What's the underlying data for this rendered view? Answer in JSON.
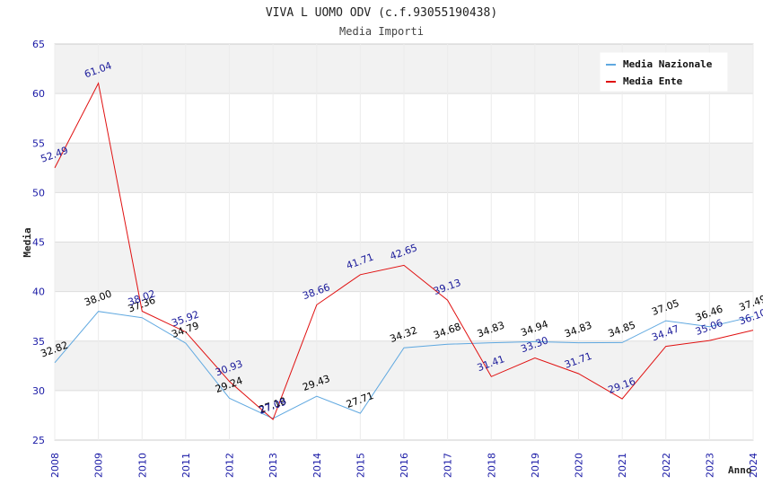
{
  "chart_data": {
    "type": "line",
    "title": "VIVA L UOMO ODV (c.f.93055190438)",
    "subtitle": "Media Importi",
    "xlabel": "Anno",
    "ylabel": "Media",
    "ylim": [
      25,
      65
    ],
    "yticks": [
      "25",
      "30",
      "35",
      "40",
      "45",
      "50",
      "55",
      "60",
      "65"
    ],
    "x": [
      "2008",
      "2009",
      "2010",
      "2011",
      "2012",
      "2013",
      "2014",
      "2015",
      "2016",
      "2017",
      "2018",
      "2019",
      "2020",
      "2021",
      "2022",
      "2023",
      "2024"
    ],
    "grid": true,
    "legend_position": "top-right",
    "series": [
      {
        "name": "Media Nazionale",
        "color": "#5fa8e0",
        "label_color": "#000000",
        "values": [
          32.82,
          38.0,
          37.36,
          34.79,
          29.24,
          27.18,
          29.43,
          27.71,
          34.32,
          34.68,
          34.83,
          34.94,
          34.83,
          34.85,
          37.05,
          36.46,
          37.49
        ],
        "labels": [
          "32.82",
          "38.00",
          "37.36",
          "34.79",
          "29.24",
          "27.18",
          "29.43",
          "27.71",
          "34.32",
          "34.68",
          "34.83",
          "34.94",
          "34.83",
          "34.85",
          "37.05",
          "36.46",
          "37.49"
        ]
      },
      {
        "name": "Media Ente",
        "color": "#e01010",
        "label_color": "#1a1a9a",
        "values": [
          52.49,
          61.04,
          38.02,
          35.92,
          30.93,
          27.09,
          38.66,
          41.71,
          42.65,
          39.13,
          31.41,
          33.3,
          31.71,
          29.16,
          34.47,
          35.06,
          36.1
        ],
        "labels": [
          "52.49",
          "61.04",
          "38.02",
          "35.92",
          "30.93",
          "27.09",
          "38.66",
          "41.71",
          "42.65",
          "39.13",
          "31.41",
          "33.30",
          "31.71",
          "29.16",
          "34.47",
          "35.06",
          "36.10"
        ]
      }
    ]
  }
}
